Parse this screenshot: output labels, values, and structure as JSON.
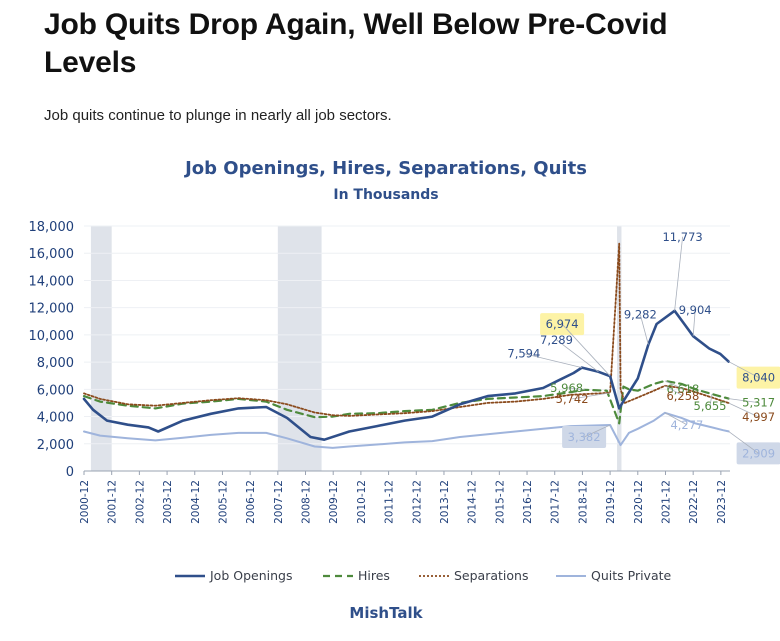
{
  "article": {
    "headline": "Job Quits Drop Again, Well Below Pre-Covid Levels",
    "subheadline": "Job quits continue to plunge in nearly all job sectors."
  },
  "chart_data": {
    "type": "line",
    "title": "Job Openings, Hires, Separations, Quits",
    "subtitle": "In Thousands",
    "source": "MishTalk",
    "xlabel": "",
    "ylabel": "",
    "ylim": [
      0,
      18000
    ],
    "xlim": [
      2000.92,
      2024.25
    ],
    "yticks": [
      0,
      2000,
      4000,
      6000,
      8000,
      10000,
      12000,
      14000,
      16000,
      18000
    ],
    "y_tick_labels": [
      "0",
      "2,000",
      "4,000",
      "6,000",
      "8,000",
      "10,000",
      "12,000",
      "14,000",
      "16,000",
      "18,000"
    ],
    "x_tick_labels": [
      "2000-12",
      "2001-12",
      "2002-12",
      "2003-12",
      "2004-12",
      "2005-12",
      "2006-12",
      "2007-12",
      "2008-12",
      "2009-12",
      "2010-12",
      "2011-12",
      "2012-12",
      "2013-12",
      "2014-12",
      "2015-12",
      "2016-12",
      "2017-12",
      "2018-12",
      "2019-12",
      "2020-12",
      "2021-12",
      "2022-12",
      "2023-12"
    ],
    "recessions": [
      [
        2001.17,
        2001.92
      ],
      [
        2007.92,
        2009.5
      ],
      [
        2020.17,
        2020.33
      ]
    ],
    "colors": {
      "openings": "#2f4f8a",
      "hires": "#4e8a3c",
      "separations": "#8a4a1c",
      "quits": "#9fb4dc",
      "recession": "#dfe3ea",
      "axis_text": "#1f3f7a",
      "highlight_yellow": "#fdf3a6",
      "highlight_blue": "#cfd8e8"
    },
    "series": [
      {
        "name": "Job Openings",
        "key": "openings",
        "style": "solid",
        "points": [
          [
            2000.92,
            5300
          ],
          [
            2001.25,
            4500
          ],
          [
            2001.75,
            3700
          ],
          [
            2002.5,
            3400
          ],
          [
            2003.25,
            3200
          ],
          [
            2003.6,
            2900
          ],
          [
            2004.5,
            3700
          ],
          [
            2005.5,
            4200
          ],
          [
            2006.5,
            4600
          ],
          [
            2007.5,
            4700
          ],
          [
            2008.25,
            3900
          ],
          [
            2009.1,
            2500
          ],
          [
            2009.6,
            2300
          ],
          [
            2010.5,
            2900
          ],
          [
            2011.5,
            3300
          ],
          [
            2012.5,
            3700
          ],
          [
            2013.5,
            4000
          ],
          [
            2014.5,
            4900
          ],
          [
            2015.5,
            5500
          ],
          [
            2016.5,
            5700
          ],
          [
            2017.5,
            6100
          ],
          [
            2018.0,
            6600
          ],
          [
            2018.6,
            7200
          ],
          [
            2018.9,
            7594
          ],
          [
            2019.5,
            7289
          ],
          [
            2019.92,
            6974
          ],
          [
            2020.25,
            4600
          ],
          [
            2020.45,
            5300
          ],
          [
            2020.92,
            6800
          ],
          [
            2021.3,
            9282
          ],
          [
            2021.6,
            10800
          ],
          [
            2022.25,
            11773
          ],
          [
            2022.6,
            10800
          ],
          [
            2022.92,
            9904
          ],
          [
            2023.5,
            9000
          ],
          [
            2023.9,
            8600
          ],
          [
            2024.2,
            8040
          ]
        ]
      },
      {
        "name": "Hires",
        "key": "hires",
        "style": "dash",
        "points": [
          [
            2000.92,
            5500
          ],
          [
            2001.5,
            5100
          ],
          [
            2002.5,
            4800
          ],
          [
            2003.5,
            4600
          ],
          [
            2004.5,
            4950
          ],
          [
            2005.5,
            5100
          ],
          [
            2006.5,
            5300
          ],
          [
            2007.5,
            5100
          ],
          [
            2008.25,
            4500
          ],
          [
            2009.25,
            3950
          ],
          [
            2009.9,
            4000
          ],
          [
            2010.5,
            4200
          ],
          [
            2011.5,
            4250
          ],
          [
            2012.5,
            4400
          ],
          [
            2013.5,
            4500
          ],
          [
            2014.5,
            5000
          ],
          [
            2015.5,
            5300
          ],
          [
            2016.5,
            5400
          ],
          [
            2017.5,
            5500
          ],
          [
            2018.5,
            5800
          ],
          [
            2019.0,
            5968
          ],
          [
            2019.8,
            5900
          ],
          [
            2020.25,
            3500
          ],
          [
            2020.4,
            6200
          ],
          [
            2020.6,
            6000
          ],
          [
            2020.92,
            5900
          ],
          [
            2021.5,
            6400
          ],
          [
            2021.9,
            6618
          ],
          [
            2022.5,
            6400
          ],
          [
            2023.0,
            6000
          ],
          [
            2023.6,
            5655
          ],
          [
            2024.2,
            5317
          ]
        ]
      },
      {
        "name": "Separations",
        "key": "separations",
        "style": "dot",
        "points": [
          [
            2000.92,
            5700
          ],
          [
            2001.5,
            5300
          ],
          [
            2002.5,
            4900
          ],
          [
            2003.5,
            4800
          ],
          [
            2004.5,
            5000
          ],
          [
            2005.5,
            5200
          ],
          [
            2006.5,
            5350
          ],
          [
            2007.5,
            5200
          ],
          [
            2008.25,
            4900
          ],
          [
            2009.25,
            4300
          ],
          [
            2009.9,
            4100
          ],
          [
            2010.5,
            4050
          ],
          [
            2011.5,
            4150
          ],
          [
            2012.5,
            4250
          ],
          [
            2013.5,
            4400
          ],
          [
            2014.5,
            4700
          ],
          [
            2015.5,
            5000
          ],
          [
            2016.5,
            5100
          ],
          [
            2017.5,
            5300
          ],
          [
            2018.5,
            5600
          ],
          [
            2019.92,
            5742
          ],
          [
            2020.25,
            16700
          ],
          [
            2020.3,
            6000
          ],
          [
            2020.45,
            5000
          ],
          [
            2020.92,
            5400
          ],
          [
            2021.5,
            5900
          ],
          [
            2021.9,
            6258
          ],
          [
            2022.5,
            6100
          ],
          [
            2023.0,
            5800
          ],
          [
            2023.6,
            5400
          ],
          [
            2024.2,
            4997
          ]
        ]
      },
      {
        "name": "Quits Private",
        "key": "quits",
        "style": "solid",
        "points": [
          [
            2000.92,
            2900
          ],
          [
            2001.5,
            2600
          ],
          [
            2002.5,
            2400
          ],
          [
            2003.5,
            2250
          ],
          [
            2004.5,
            2450
          ],
          [
            2005.5,
            2650
          ],
          [
            2006.5,
            2800
          ],
          [
            2007.5,
            2800
          ],
          [
            2008.25,
            2400
          ],
          [
            2009.25,
            1800
          ],
          [
            2009.9,
            1700
          ],
          [
            2010.5,
            1800
          ],
          [
            2011.5,
            1950
          ],
          [
            2012.5,
            2100
          ],
          [
            2013.5,
            2200
          ],
          [
            2014.5,
            2500
          ],
          [
            2015.5,
            2700
          ],
          [
            2016.5,
            2900
          ],
          [
            2017.5,
            3100
          ],
          [
            2018.5,
            3300
          ],
          [
            2019.92,
            3382
          ],
          [
            2020.3,
            1900
          ],
          [
            2020.6,
            2800
          ],
          [
            2020.92,
            3100
          ],
          [
            2021.5,
            3700
          ],
          [
            2021.9,
            4277
          ],
          [
            2022.5,
            3900
          ],
          [
            2023.0,
            3500
          ],
          [
            2023.6,
            3200
          ],
          [
            2024.0,
            3000
          ],
          [
            2024.2,
            2909
          ]
        ]
      }
    ],
    "annotations": [
      {
        "text": "11,773",
        "x": 2022.25,
        "y": 11773,
        "series": "openings",
        "highlight": false
      },
      {
        "text": "9,282",
        "x": 2021.3,
        "y": 9282,
        "series": "openings",
        "highlight": false
      },
      {
        "text": "9,904",
        "x": 2022.92,
        "y": 9904,
        "series": "openings",
        "highlight": false
      },
      {
        "text": "6,974",
        "x": 2019.92,
        "y": 6974,
        "series": "openings",
        "highlight": "yellow"
      },
      {
        "text": "7,289",
        "x": 2019.5,
        "y": 7289,
        "series": "openings",
        "highlight": false
      },
      {
        "text": "7,594",
        "x": 2018.9,
        "y": 7594,
        "series": "openings",
        "highlight": false
      },
      {
        "text": "8,040",
        "x": 2024.2,
        "y": 8040,
        "series": "openings",
        "highlight": "yellow"
      },
      {
        "text": "6,618",
        "x": 2021.9,
        "y": 6618,
        "series": "hires",
        "highlight": false
      },
      {
        "text": "5,968",
        "x": 2019.0,
        "y": 5968,
        "series": "hires",
        "highlight": false
      },
      {
        "text": "5,655",
        "x": 2023.6,
        "y": 5655,
        "series": "hires",
        "highlight": false
      },
      {
        "text": "5,317",
        "x": 2024.2,
        "y": 5317,
        "series": "hires",
        "highlight": false
      },
      {
        "text": "5,742",
        "x": 2019.92,
        "y": 5742,
        "series": "separations",
        "highlight": false
      },
      {
        "text": "6,258",
        "x": 2021.9,
        "y": 6258,
        "series": "separations",
        "highlight": false
      },
      {
        "text": "4,997",
        "x": 2024.2,
        "y": 4997,
        "series": "separations",
        "highlight": false
      },
      {
        "text": "3,382",
        "x": 2019.92,
        "y": 3382,
        "series": "quits",
        "highlight": "blue"
      },
      {
        "text": "4,277",
        "x": 2021.9,
        "y": 4277,
        "series": "quits",
        "highlight": false
      },
      {
        "text": "2,909",
        "x": 2024.2,
        "y": 2909,
        "series": "quits",
        "highlight": "blue"
      }
    ],
    "legend": {
      "placement": "bottom",
      "entries": [
        {
          "label": "Job Openings",
          "series": "openings"
        },
        {
          "label": "Hires",
          "series": "hires"
        },
        {
          "label": "Separations",
          "series": "separations"
        },
        {
          "label": "Quits Private",
          "series": "quits"
        }
      ]
    }
  }
}
